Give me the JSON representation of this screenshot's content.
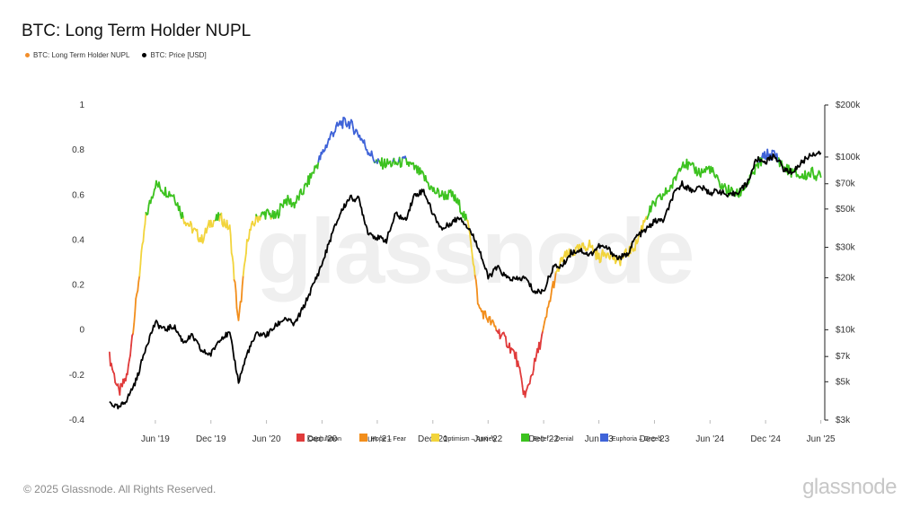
{
  "title": "BTC: Long Term Holder NUPL",
  "legend": [
    {
      "label": "BTC: Long Term Holder NUPL",
      "color": "#f28e2b"
    },
    {
      "label": "BTC: Price [USD]",
      "color": "#000000"
    }
  ],
  "watermark": "glassnode",
  "footer": {
    "copyright": "© 2025 Glassnode. All Rights Reserved.",
    "logo": "glassnode"
  },
  "chart_data": {
    "type": "line",
    "x_ticks": [
      "Jun '19",
      "Dec '19",
      "Jun '20",
      "Dec '20",
      "Jun '21",
      "Dec '21",
      "Jun '22",
      "Dec '22",
      "Jun '23",
      "Dec '23",
      "Jun '24",
      "Dec '24",
      "Jun '25"
    ],
    "y_left_ticks": [
      "1",
      "0.8",
      "0.6",
      "0.4",
      "0.2",
      "0",
      "-0.2",
      "-0.4"
    ],
    "y_left_range": [
      -0.4,
      1
    ],
    "y_right_ticks": [
      "$200k",
      "$100k",
      "$70k",
      "$50k",
      "$30k",
      "$20k",
      "$10k",
      "$7k",
      "$5k",
      "$3k"
    ],
    "y_right_range": [
      3000,
      200000
    ],
    "y_right_scale": "log",
    "regimes": [
      {
        "label": "Capitulation",
        "color": "#e03b3b"
      },
      {
        "label": "Hope – Fear",
        "color": "#f28e1c"
      },
      {
        "label": "Optimism – Anxiety",
        "color": "#f2d43c"
      },
      {
        "label": "Belief – Denial",
        "color": "#3cc21f"
      },
      {
        "label": "Euphoria – Greed",
        "color": "#3f63d8"
      }
    ],
    "series": [
      {
        "name": "BTC: Long Term Holder NUPL",
        "axis": "left",
        "points": [
          [
            "2019-01-01",
            -0.12
          ],
          [
            "2019-02-01",
            -0.28
          ],
          [
            "2019-03-01",
            -0.2
          ],
          [
            "2019-04-01",
            0.15
          ],
          [
            "2019-05-01",
            0.5
          ],
          [
            "2019-06-01",
            0.65
          ],
          [
            "2019-07-01",
            0.62
          ],
          [
            "2019-08-01",
            0.6
          ],
          [
            "2019-09-01",
            0.5
          ],
          [
            "2019-10-01",
            0.45
          ],
          [
            "2019-11-01",
            0.4
          ],
          [
            "2019-12-01",
            0.48
          ],
          [
            "2020-01-01",
            0.5
          ],
          [
            "2020-02-01",
            0.45
          ],
          [
            "2020-03-01",
            0.03
          ],
          [
            "2020-04-01",
            0.42
          ],
          [
            "2020-05-01",
            0.5
          ],
          [
            "2020-06-01",
            0.52
          ],
          [
            "2020-07-01",
            0.5
          ],
          [
            "2020-08-01",
            0.58
          ],
          [
            "2020-09-01",
            0.56
          ],
          [
            "2020-10-01",
            0.62
          ],
          [
            "2020-11-01",
            0.7
          ],
          [
            "2020-12-01",
            0.78
          ],
          [
            "2021-01-01",
            0.87
          ],
          [
            "2021-02-01",
            0.92
          ],
          [
            "2021-03-01",
            0.92
          ],
          [
            "2021-04-01",
            0.87
          ],
          [
            "2021-05-01",
            0.8
          ],
          [
            "2021-06-01",
            0.74
          ],
          [
            "2021-07-01",
            0.74
          ],
          [
            "2021-08-01",
            0.74
          ],
          [
            "2021-09-01",
            0.75
          ],
          [
            "2021-10-01",
            0.72
          ],
          [
            "2021-11-01",
            0.68
          ],
          [
            "2021-12-01",
            0.62
          ],
          [
            "2022-01-01",
            0.6
          ],
          [
            "2022-02-01",
            0.6
          ],
          [
            "2022-03-01",
            0.55
          ],
          [
            "2022-04-01",
            0.45
          ],
          [
            "2022-05-01",
            0.1
          ],
          [
            "2022-06-01",
            0.05
          ],
          [
            "2022-07-01",
            0.0
          ],
          [
            "2022-08-01",
            -0.05
          ],
          [
            "2022-09-01",
            -0.12
          ],
          [
            "2022-10-01",
            -0.3
          ],
          [
            "2022-11-01",
            -0.15
          ],
          [
            "2022-12-01",
            0.0
          ],
          [
            "2023-01-01",
            0.2
          ],
          [
            "2023-02-01",
            0.32
          ],
          [
            "2023-03-01",
            0.34
          ],
          [
            "2023-04-01",
            0.36
          ],
          [
            "2023-05-01",
            0.38
          ],
          [
            "2023-06-01",
            0.32
          ],
          [
            "2023-07-01",
            0.35
          ],
          [
            "2023-08-01",
            0.3
          ],
          [
            "2023-09-01",
            0.34
          ],
          [
            "2023-10-01",
            0.38
          ],
          [
            "2023-11-01",
            0.5
          ],
          [
            "2023-12-01",
            0.56
          ],
          [
            "2024-01-01",
            0.6
          ],
          [
            "2024-02-01",
            0.65
          ],
          [
            "2024-03-01",
            0.75
          ],
          [
            "2024-04-01",
            0.72
          ],
          [
            "2024-05-01",
            0.7
          ],
          [
            "2024-06-01",
            0.72
          ],
          [
            "2024-07-01",
            0.65
          ],
          [
            "2024-08-01",
            0.62
          ],
          [
            "2024-09-01",
            0.6
          ],
          [
            "2024-10-01",
            0.65
          ],
          [
            "2024-11-01",
            0.72
          ],
          [
            "2024-12-01",
            0.78
          ],
          [
            "2025-01-01",
            0.78
          ],
          [
            "2025-02-01",
            0.72
          ],
          [
            "2025-03-01",
            0.7
          ],
          [
            "2025-04-01",
            0.68
          ],
          [
            "2025-05-01",
            0.7
          ],
          [
            "2025-06-01",
            0.68
          ]
        ]
      },
      {
        "name": "BTC: Price [USD]",
        "axis": "right",
        "points": [
          [
            "2019-01-01",
            3800
          ],
          [
            "2019-02-01",
            3500
          ],
          [
            "2019-03-01",
            4000
          ],
          [
            "2019-04-01",
            5200
          ],
          [
            "2019-05-01",
            8000
          ],
          [
            "2019-06-01",
            11000
          ],
          [
            "2019-07-01",
            10000
          ],
          [
            "2019-08-01",
            10500
          ],
          [
            "2019-09-01",
            8500
          ],
          [
            "2019-10-01",
            9200
          ],
          [
            "2019-11-01",
            7500
          ],
          [
            "2019-12-01",
            7200
          ],
          [
            "2020-01-01",
            9000
          ],
          [
            "2020-02-01",
            9500
          ],
          [
            "2020-03-01",
            5000
          ],
          [
            "2020-04-01",
            7500
          ],
          [
            "2020-05-01",
            9500
          ],
          [
            "2020-06-01",
            9300
          ],
          [
            "2020-07-01",
            10500
          ],
          [
            "2020-08-01",
            11700
          ],
          [
            "2020-09-01",
            10700
          ],
          [
            "2020-10-01",
            13500
          ],
          [
            "2020-11-01",
            18000
          ],
          [
            "2020-12-01",
            24000
          ],
          [
            "2021-01-01",
            35000
          ],
          [
            "2021-02-01",
            48000
          ],
          [
            "2021-03-01",
            58000
          ],
          [
            "2021-04-01",
            57000
          ],
          [
            "2021-05-01",
            37000
          ],
          [
            "2021-06-01",
            34000
          ],
          [
            "2021-07-01",
            33000
          ],
          [
            "2021-08-01",
            47000
          ],
          [
            "2021-09-01",
            43000
          ],
          [
            "2021-10-01",
            60000
          ],
          [
            "2021-11-01",
            64000
          ],
          [
            "2021-12-01",
            47000
          ],
          [
            "2022-01-01",
            38000
          ],
          [
            "2022-02-01",
            42000
          ],
          [
            "2022-03-01",
            45000
          ],
          [
            "2022-04-01",
            38000
          ],
          [
            "2022-05-01",
            30000
          ],
          [
            "2022-06-01",
            20000
          ],
          [
            "2022-07-01",
            23000
          ],
          [
            "2022-08-01",
            20000
          ],
          [
            "2022-09-01",
            19500
          ],
          [
            "2022-10-01",
            20000
          ],
          [
            "2022-11-01",
            16500
          ],
          [
            "2022-12-01",
            16800
          ],
          [
            "2023-01-01",
            23000
          ],
          [
            "2023-02-01",
            23500
          ],
          [
            "2023-03-01",
            28000
          ],
          [
            "2023-04-01",
            29000
          ],
          [
            "2023-05-01",
            27000
          ],
          [
            "2023-06-01",
            30500
          ],
          [
            "2023-07-01",
            29500
          ],
          [
            "2023-08-01",
            26000
          ],
          [
            "2023-09-01",
            27000
          ],
          [
            "2023-10-01",
            34500
          ],
          [
            "2023-11-01",
            37500
          ],
          [
            "2023-12-01",
            42500
          ],
          [
            "2024-01-01",
            43000
          ],
          [
            "2024-02-01",
            60000
          ],
          [
            "2024-03-01",
            70000
          ],
          [
            "2024-04-01",
            64000
          ],
          [
            "2024-05-01",
            67000
          ],
          [
            "2024-06-01",
            62000
          ],
          [
            "2024-07-01",
            64000
          ],
          [
            "2024-08-01",
            59000
          ],
          [
            "2024-09-01",
            63000
          ],
          [
            "2024-10-01",
            70000
          ],
          [
            "2024-11-01",
            97000
          ],
          [
            "2024-12-01",
            94000
          ],
          [
            "2025-01-01",
            102000
          ],
          [
            "2025-02-01",
            84000
          ],
          [
            "2025-03-01",
            82000
          ],
          [
            "2025-04-01",
            94000
          ],
          [
            "2025-05-01",
            104000
          ],
          [
            "2025-06-01",
            106000
          ]
        ]
      }
    ]
  }
}
